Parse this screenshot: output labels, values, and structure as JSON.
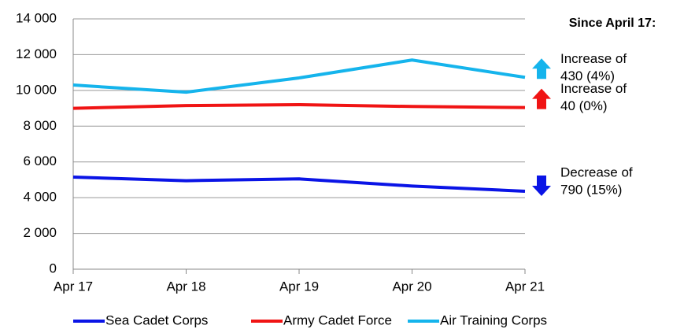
{
  "chart_data": {
    "type": "line",
    "categories": [
      "Apr 17",
      "Apr 18",
      "Apr 19",
      "Apr 20",
      "Apr 21"
    ],
    "series": [
      {
        "name": "Sea Cadet Corps",
        "color": "#0a14e6",
        "values": [
          5150,
          4950,
          5050,
          4650,
          4360
        ]
      },
      {
        "name": "Army Cadet Force",
        "color": "#f01414",
        "values": [
          9000,
          9150,
          9200,
          9100,
          9040
        ]
      },
      {
        "name": "Air Training Corps",
        "color": "#15b4ec",
        "values": [
          10300,
          9900,
          10700,
          11700,
          10730
        ]
      }
    ],
    "ylim": [
      0,
      14000
    ],
    "yticks": [
      0,
      {
        "value": 2000,
        "label": "2 000"
      },
      {
        "value": 4000,
        "label": "4 000"
      },
      {
        "value": 6000,
        "label": "6 000"
      },
      {
        "value": 8000,
        "label": "8 000"
      },
      {
        "value": 10000,
        "label": "10 000"
      },
      {
        "value": 12000,
        "label": "12 000"
      },
      {
        "value": 14000,
        "label": "14 000"
      }
    ],
    "grid": true,
    "legend": "bottom",
    "annotation_title": "Since April 17:",
    "annotations": [
      {
        "lines": [
          "Increase of",
          "430 (4%)"
        ],
        "direction": "up",
        "color": "#15b4ec",
        "series": 2
      },
      {
        "lines": [
          "Increase of",
          "40 (0%)"
        ],
        "direction": "up",
        "color": "#f01414",
        "series": 1
      },
      {
        "lines": [
          "Decrease of",
          "790 (15%)"
        ],
        "direction": "down",
        "color": "#0a14e6",
        "series": 0
      }
    ]
  }
}
